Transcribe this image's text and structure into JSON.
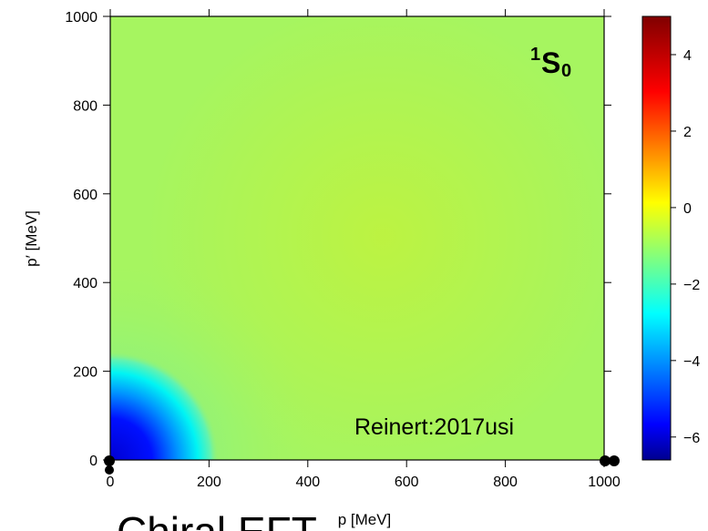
{
  "chart_data": {
    "type": "heatmap",
    "title": "",
    "xlabel": "p [MeV]",
    "ylabel": "p′ [MeV]",
    "xlim": [
      0,
      1000
    ],
    "ylim": [
      0,
      1000
    ],
    "x_ticks": [
      "0",
      "200",
      "400",
      "600",
      "800",
      "1000"
    ],
    "y_ticks": [
      "0",
      "200",
      "400",
      "600",
      "800",
      "1000"
    ],
    "colorbar": {
      "range": [
        -6.6,
        5.0
      ],
      "ticks": [
        "4",
        "2",
        "0",
        "−2",
        "−4",
        "−6"
      ],
      "tick_values": [
        4,
        2,
        0,
        -2,
        -4,
        -6
      ],
      "colormap": [
        "#00008f",
        "#0000ff",
        "#00ffff",
        "#ffff00",
        "#ff0000",
        "#800000"
      ]
    },
    "channel_label": {
      "sup": "1",
      "main": "S",
      "sub": "0"
    },
    "annotation": "Reinert:2017usi",
    "surface_description_values": {
      "background_value": -0.3,
      "minimum": {
        "p": 0,
        "p_prime": 0,
        "value": -6.3
      },
      "ridge_value": 0.4
    }
  },
  "footer_text": "Chiral EFT",
  "colors": {
    "axis": "#000000",
    "background_field": "#a6f560"
  }
}
